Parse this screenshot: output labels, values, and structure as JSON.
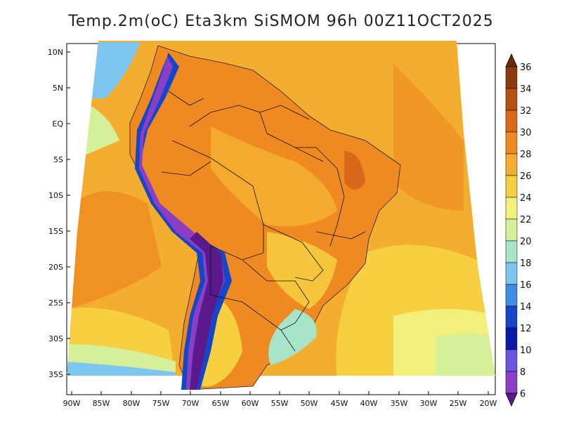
{
  "title": "Temp.2m(oC) Eta3km SiSMOM 96h 00Z11OCT2025",
  "lat_labels": [
    "10N",
    "5N",
    "EQ",
    "5S",
    "10S",
    "15S",
    "20S",
    "25S",
    "30S",
    "35S"
  ],
  "lon_labels": [
    "90W",
    "85W",
    "80W",
    "75W",
    "70W",
    "65W",
    "60W",
    "55W",
    "50W",
    "45W",
    "40W",
    "35W",
    "30W",
    "25W",
    "20W"
  ],
  "colorbar": {
    "labels": [
      "36",
      "34",
      "32",
      "30",
      "28",
      "26",
      "24",
      "22",
      "20",
      "18",
      "16",
      "14",
      "12",
      "10",
      "8",
      "6"
    ],
    "colors": [
      "#6b2a0a",
      "#8c3a0e",
      "#b5520f",
      "#d9691a",
      "#ef8a22",
      "#f3ad2f",
      "#f6d040",
      "#f2ef7a",
      "#d6f09a",
      "#a8e4c8",
      "#7cc6ef",
      "#3f8fe0",
      "#1447c7",
      "#0a1aa6",
      "#6a55e0",
      "#8a3fc4",
      "#5a1a8c"
    ]
  },
  "chart_data": {
    "type": "heatmap",
    "title": "Temp.2m(oC) Eta3km SiSMOM 96h 00Z11OCT2025",
    "variable": "2 m temperature",
    "units": "oC",
    "model": "Eta3km SiSMOM",
    "forecast_hour": "96h",
    "valid_time": "00Z11OCT2025",
    "lon_range": [
      -90,
      -20
    ],
    "lat_range": [
      -38,
      11
    ],
    "colorbar_levels": [
      6,
      8,
      10,
      12,
      14,
      16,
      18,
      20,
      22,
      24,
      26,
      28,
      30,
      32,
      34,
      36
    ]
  }
}
